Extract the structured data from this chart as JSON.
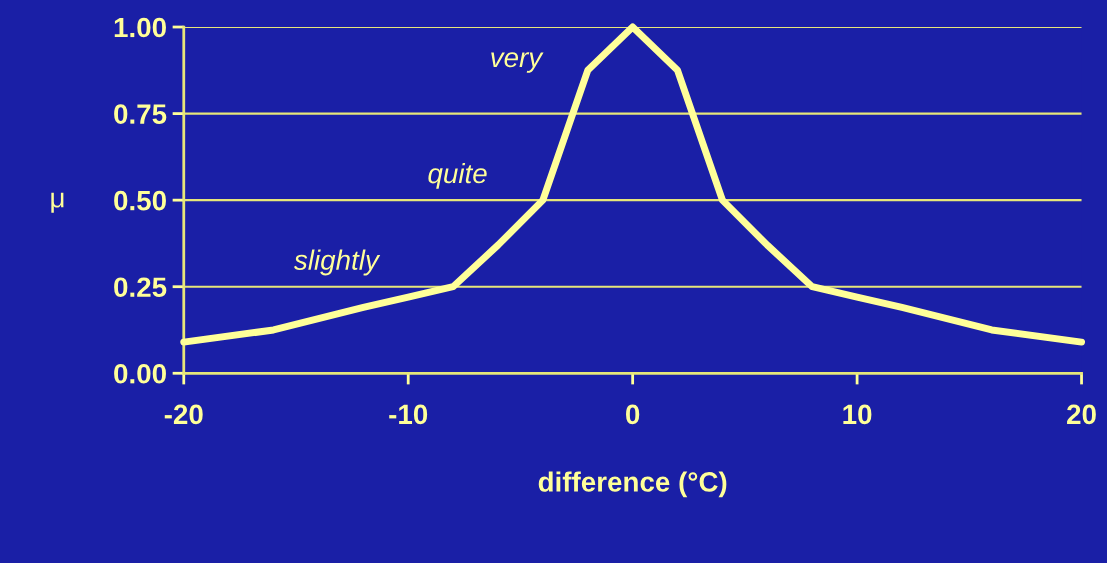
{
  "chart_data": {
    "type": "line",
    "xlabel": "difference (°C)",
    "ylabel": "μ",
    "x": [
      -20,
      -16,
      -12,
      -10,
      -8,
      -6,
      -4,
      -2,
      0,
      2,
      4,
      6,
      8,
      10,
      12,
      16,
      20
    ],
    "series": [
      {
        "color": "#ffff99",
        "values": [
          0.09,
          0.125,
          0.19,
          0.22,
          0.25,
          0.37,
          0.5,
          0.875,
          1.0,
          0.875,
          0.5,
          0.37,
          0.25,
          0.22,
          0.19,
          0.125,
          0.09
        ]
      }
    ],
    "xlim": [
      -20,
      20
    ],
    "xticks": [
      -20,
      -10,
      0,
      10,
      20
    ],
    "ylim": [
      0,
      1
    ],
    "yticks": [
      {
        "value": 0,
        "label": "0.00"
      },
      {
        "value": 0.25,
        "label": "0.25"
      },
      {
        "value": 0.5,
        "label": "0.50"
      },
      {
        "value": 0.75,
        "label": "0.75"
      },
      {
        "value": 1,
        "label": "1.00"
      }
    ],
    "grid": "y",
    "marker": "none",
    "line_style": "solid",
    "annotations": [
      "very",
      "quite",
      "slightly"
    ]
  }
}
